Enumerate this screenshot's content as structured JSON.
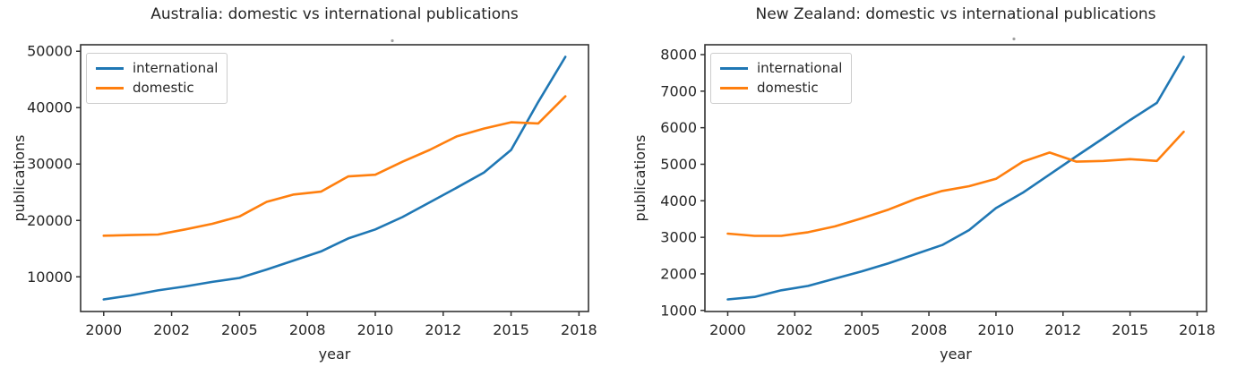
{
  "figure": {
    "background": "#ffffff",
    "text_color": "#262626",
    "spine_color": "#333333"
  },
  "chart_data": [
    {
      "type": "line",
      "title": "Australia: domestic vs international publications",
      "xlabel": "year",
      "ylabel": "publications",
      "x": [
        2000,
        2001,
        2002,
        2003,
        2004,
        2005,
        2006,
        2007,
        2008,
        2009,
        2010,
        2011,
        2012,
        2013,
        2014,
        2015,
        2016,
        2017
      ],
      "xlim": [
        1999.15,
        2017.85
      ],
      "ylim": [
        3850,
        51150
      ],
      "x_ticks": {
        "positions": [
          2000,
          2002.5,
          2005,
          2007.5,
          2010,
          2012.5,
          2015,
          2017.5
        ],
        "labels": [
          "2000",
          "2002",
          "2005",
          "2008",
          "2010",
          "2012",
          "2015",
          "2018"
        ]
      },
      "y_ticks": {
        "positions": [
          10000,
          20000,
          30000,
          40000,
          50000
        ],
        "labels": [
          "10000",
          "20000",
          "30000",
          "40000",
          "50000"
        ]
      },
      "grid": false,
      "legend": {
        "position": "upper left",
        "entries": [
          "international",
          "domestic"
        ]
      },
      "series": [
        {
          "name": "international",
          "color": "#1f77b4",
          "values": [
            6000,
            6700,
            7600,
            8300,
            9100,
            9800,
            11300,
            12900,
            14500,
            16800,
            18400,
            20600,
            23200,
            25800,
            28500,
            32500,
            41000,
            49000
          ]
        },
        {
          "name": "domestic",
          "color": "#ff7f0e",
          "values": [
            17300,
            17400,
            17500,
            18400,
            19400,
            20700,
            23300,
            24600,
            25100,
            27800,
            28100,
            30400,
            32500,
            34900,
            36300,
            37400,
            37200,
            42000
          ]
        }
      ]
    },
    {
      "type": "line",
      "title": "New Zealand: domestic vs international publications",
      "xlabel": "year",
      "ylabel": "publications",
      "x": [
        2000,
        2001,
        2002,
        2003,
        2004,
        2005,
        2006,
        2007,
        2008,
        2009,
        2010,
        2011,
        2012,
        2013,
        2014,
        2015,
        2016,
        2017
      ],
      "xlim": [
        1999.15,
        2017.85
      ],
      "ylim": [
        970,
        8270
      ],
      "x_ticks": {
        "positions": [
          2000,
          2002.5,
          2005,
          2007.5,
          2010,
          2012.5,
          2015,
          2017.5
        ],
        "labels": [
          "2000",
          "2002",
          "2005",
          "2008",
          "2010",
          "2012",
          "2015",
          "2018"
        ]
      },
      "y_ticks": {
        "positions": [
          1000,
          2000,
          3000,
          4000,
          5000,
          6000,
          7000,
          8000
        ],
        "labels": [
          "1000",
          "2000",
          "3000",
          "4000",
          "5000",
          "6000",
          "7000",
          "8000"
        ]
      },
      "grid": false,
      "legend": {
        "position": "upper left",
        "entries": [
          "international",
          "domestic"
        ]
      },
      "series": [
        {
          "name": "international",
          "color": "#1f77b4",
          "values": [
            1300,
            1370,
            1550,
            1670,
            1870,
            2070,
            2290,
            2540,
            2790,
            3200,
            3800,
            4220,
            4720,
            5220,
            5710,
            6210,
            6680,
            7940
          ]
        },
        {
          "name": "domestic",
          "color": "#ff7f0e",
          "values": [
            3100,
            3040,
            3040,
            3140,
            3300,
            3520,
            3760,
            4050,
            4270,
            4400,
            4600,
            5070,
            5320,
            5070,
            5090,
            5140,
            5090,
            5890
          ]
        }
      ]
    }
  ]
}
